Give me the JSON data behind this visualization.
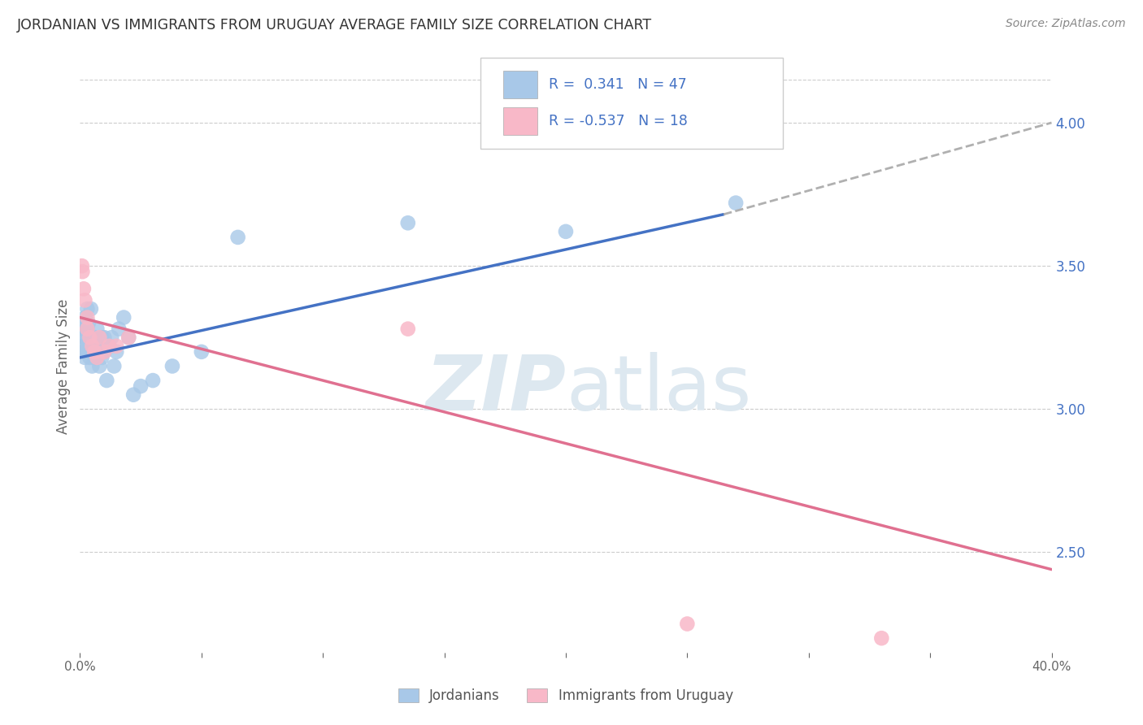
{
  "title": "JORDANIAN VS IMMIGRANTS FROM URUGUAY AVERAGE FAMILY SIZE CORRELATION CHART",
  "source": "Source: ZipAtlas.com",
  "ylabel": "Average Family Size",
  "legend_blue_r": "0.341",
  "legend_blue_n": "47",
  "legend_pink_r": "-0.537",
  "legend_pink_n": "18",
  "legend_label_blue": "Jordanians",
  "legend_label_pink": "Immigrants from Uruguay",
  "blue_color": "#a8c8e8",
  "pink_color": "#f8b8c8",
  "blue_line_color": "#4472C4",
  "pink_line_color": "#e07090",
  "dashed_line_color": "#b0b0b0",
  "title_color": "#333333",
  "right_axis_color": "#4472C4",
  "grid_color": "#cccccc",
  "watermark_color": "#dde8f0",
  "xlim": [
    0.0,
    0.4
  ],
  "ylim": [
    2.15,
    4.15
  ],
  "blue_x": [
    0.0008,
    0.001,
    0.0012,
    0.0015,
    0.0018,
    0.002,
    0.002,
    0.0022,
    0.0025,
    0.003,
    0.003,
    0.003,
    0.0035,
    0.004,
    0.004,
    0.004,
    0.0045,
    0.005,
    0.005,
    0.005,
    0.006,
    0.006,
    0.007,
    0.007,
    0.008,
    0.008,
    0.009,
    0.009,
    0.01,
    0.01,
    0.011,
    0.012,
    0.013,
    0.014,
    0.015,
    0.016,
    0.018,
    0.02,
    0.022,
    0.025,
    0.03,
    0.038,
    0.05,
    0.065,
    0.135,
    0.2,
    0.27
  ],
  "blue_y": [
    3.3,
    3.22,
    3.28,
    3.2,
    3.25,
    3.18,
    3.25,
    3.32,
    3.2,
    3.35,
    3.28,
    3.22,
    3.3,
    3.25,
    3.18,
    3.22,
    3.35,
    3.2,
    3.15,
    3.22,
    3.25,
    3.18,
    3.28,
    3.22,
    3.15,
    3.22,
    3.18,
    3.25,
    3.2,
    3.25,
    3.1,
    3.22,
    3.25,
    3.15,
    3.2,
    3.28,
    3.32,
    3.25,
    3.05,
    3.08,
    3.1,
    3.15,
    3.2,
    3.6,
    3.65,
    3.62,
    3.72
  ],
  "pink_x": [
    0.0008,
    0.001,
    0.0015,
    0.002,
    0.003,
    0.003,
    0.004,
    0.005,
    0.006,
    0.007,
    0.008,
    0.01,
    0.012,
    0.015,
    0.02,
    0.135,
    0.25,
    0.33
  ],
  "pink_y": [
    3.5,
    3.48,
    3.42,
    3.38,
    3.32,
    3.28,
    3.25,
    3.22,
    3.2,
    3.18,
    3.25,
    3.2,
    3.22,
    3.22,
    3.25,
    3.28,
    2.25,
    2.2
  ],
  "blue_line_x0": 0.0,
  "blue_line_x1": 0.265,
  "blue_line_y0": 3.18,
  "blue_line_y1": 3.68,
  "dash_line_x0": 0.265,
  "dash_line_x1": 0.4,
  "dash_line_y0": 3.68,
  "dash_line_y1": 4.0,
  "pink_line_x0": 0.0,
  "pink_line_x1": 0.4,
  "pink_line_y0": 3.32,
  "pink_line_y1": 2.44
}
